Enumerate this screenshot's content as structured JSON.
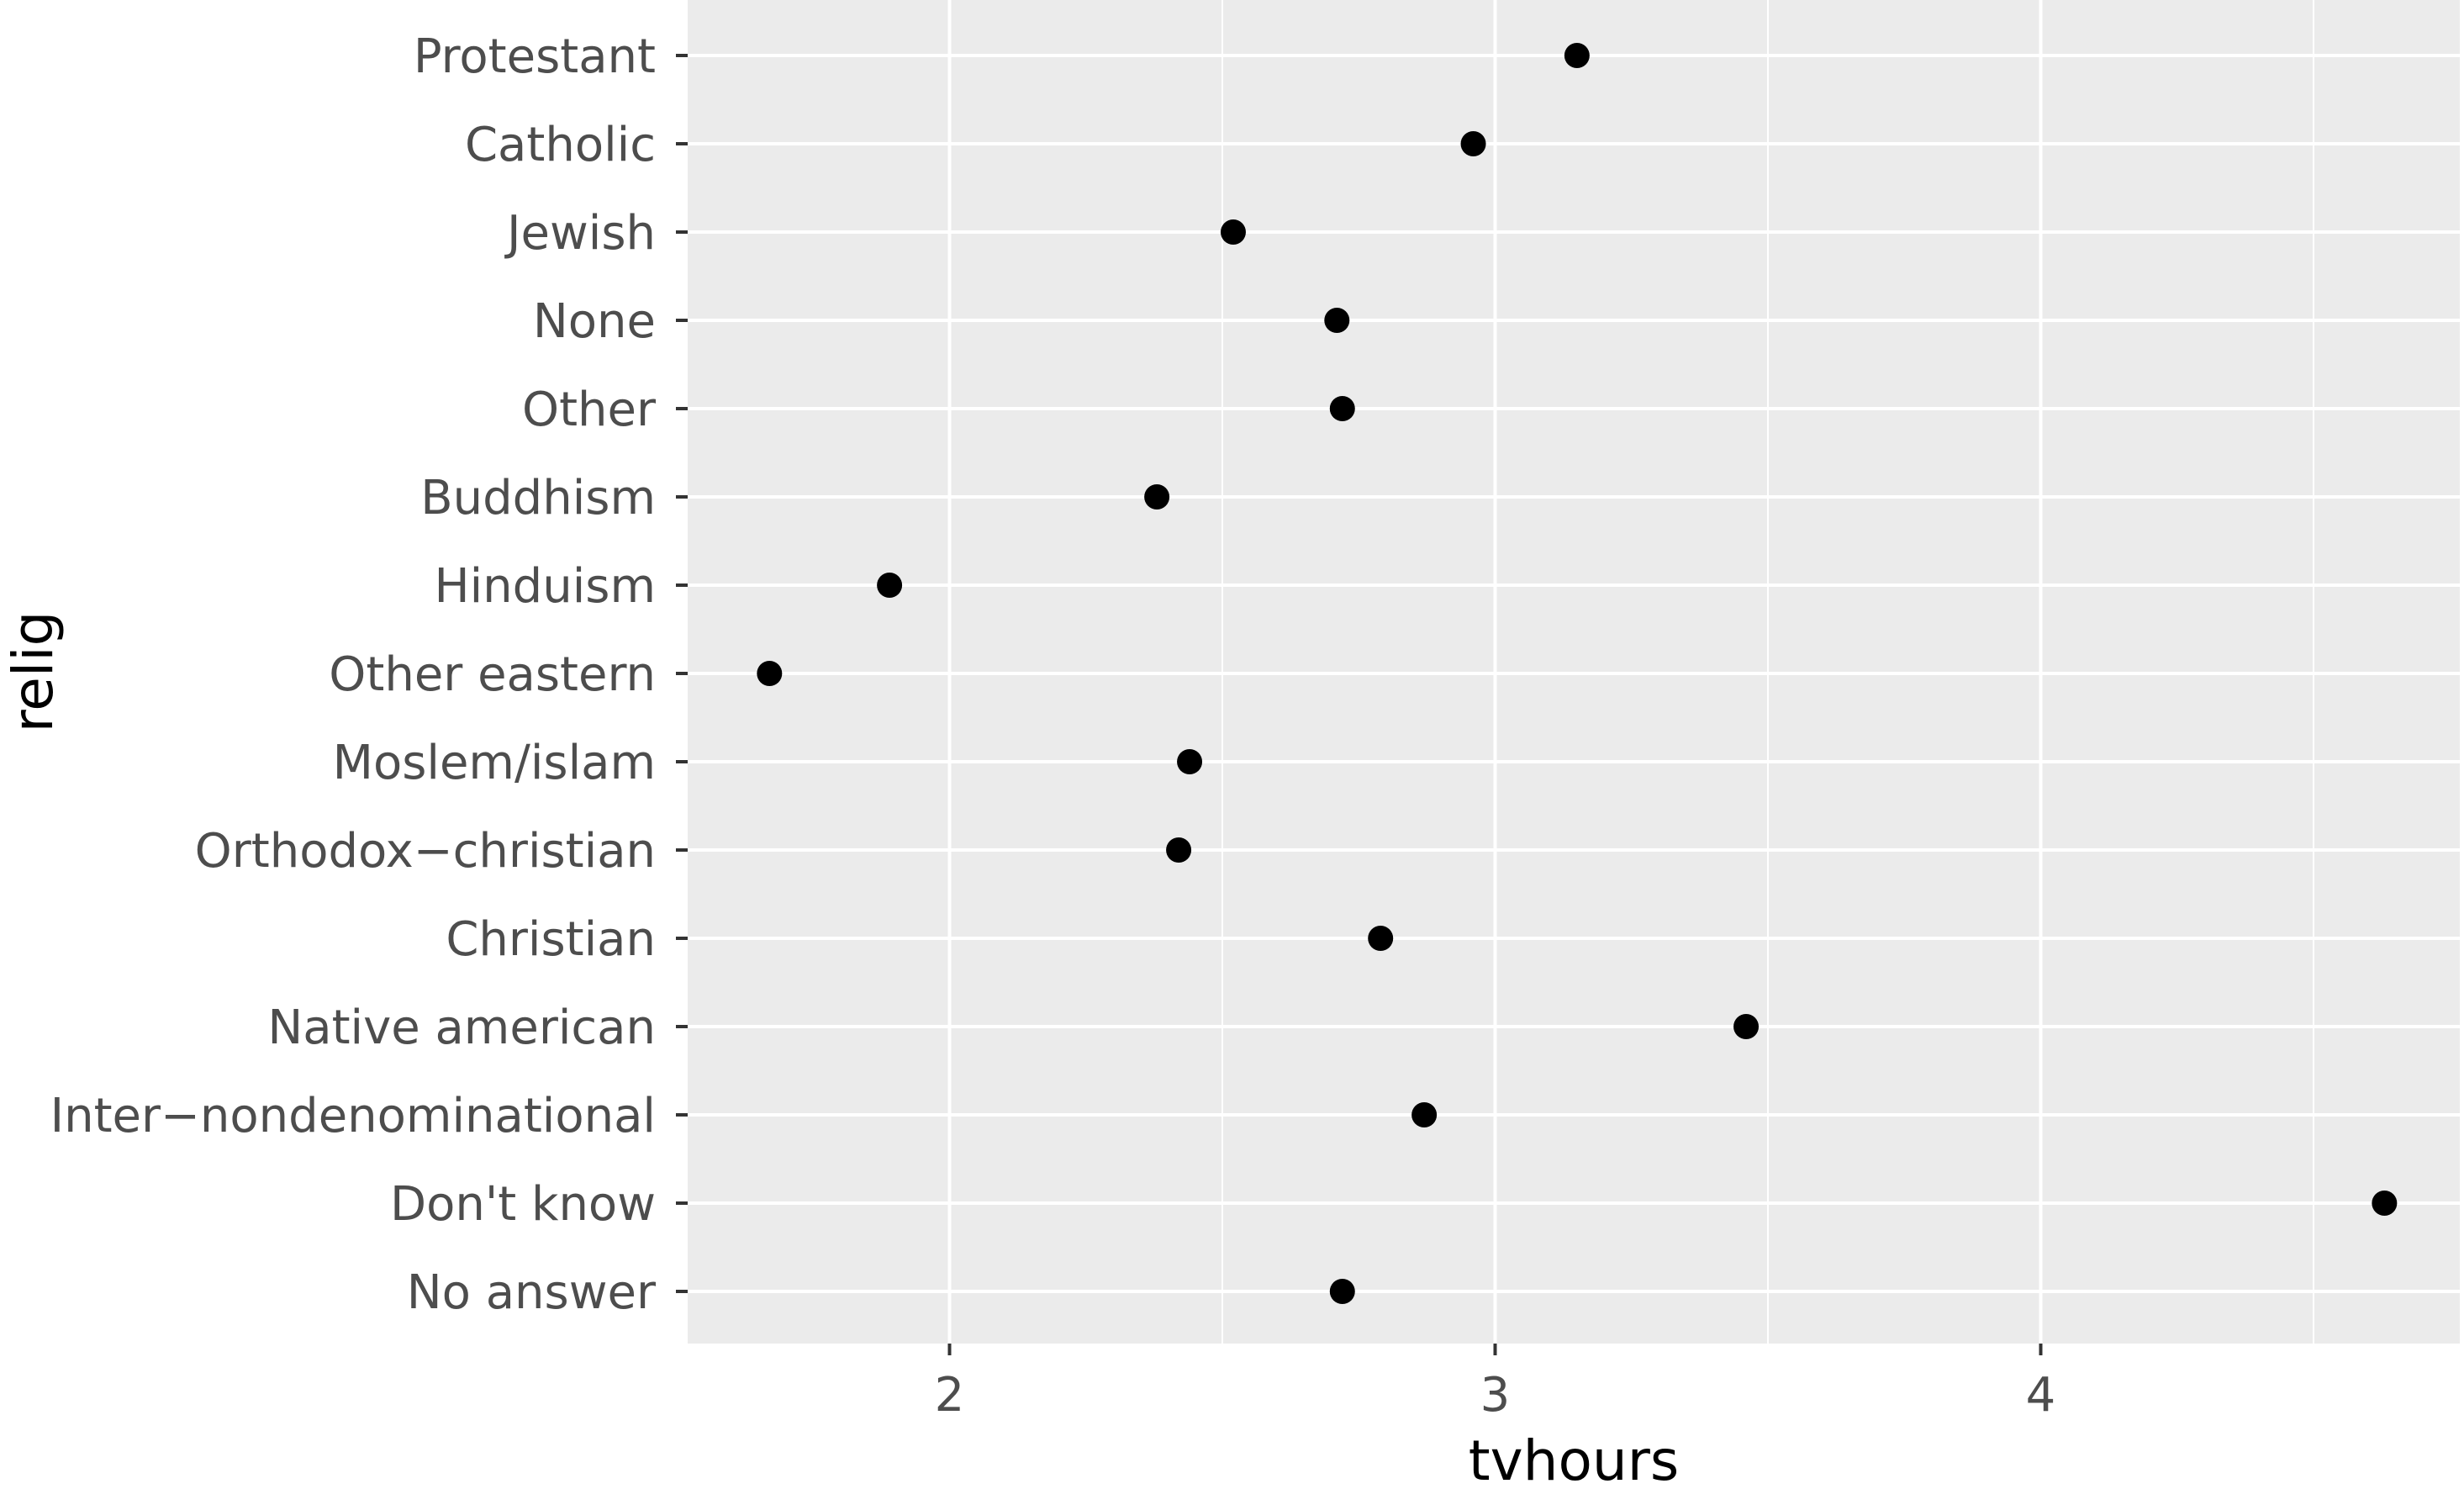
{
  "chart_data": {
    "type": "scatter",
    "categories": [
      "Protestant",
      "Catholic",
      "Jewish",
      "None",
      "Other",
      "Buddhism",
      "Hinduism",
      "Other eastern",
      "Moslem/islam",
      "Orthodox−christian",
      "Christian",
      "Native american",
      "Inter−nondenominational",
      "Don't know",
      "No answer"
    ],
    "values": [
      3.15,
      2.96,
      2.52,
      2.71,
      2.72,
      2.38,
      1.89,
      1.67,
      2.44,
      2.42,
      2.79,
      3.46,
      2.87,
      4.63,
      2.72
    ],
    "xlabel": "tvhours",
    "ylabel": "relig",
    "xlim": [
      1.52,
      4.77
    ],
    "xticks": [
      2,
      3,
      4
    ],
    "xtick_labels": [
      "2",
      "3",
      "4"
    ],
    "grid": true,
    "colors": {
      "panel_background": "#ebebeb",
      "grid_line": "#ffffff",
      "point": "#000000",
      "tick_text": "#4d4d4d",
      "axis_title": "#000000",
      "tick_mark": "#333333"
    }
  }
}
